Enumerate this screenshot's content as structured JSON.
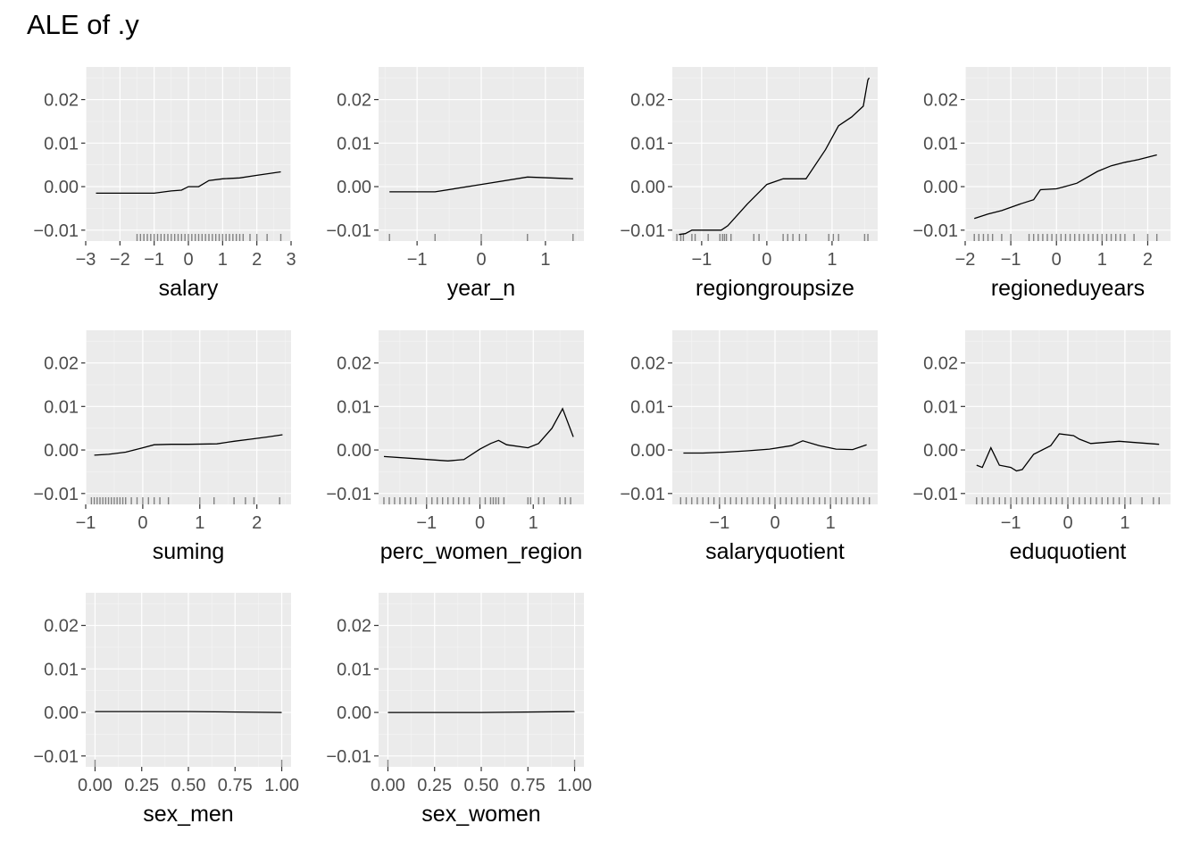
{
  "title": "ALE of .y",
  "colors": {
    "panel": "#ebebeb",
    "grid_major": "#ffffff",
    "grid_minor": "#f5f5f5",
    "line": "#000000",
    "rug": "#000000",
    "tick_text": "#4d4d4d"
  },
  "chart_data": [
    {
      "type": "line",
      "xlabel": "salary",
      "xlim": [
        -3,
        3
      ],
      "ylim": [
        -0.0125,
        0.0275
      ],
      "xticks": [
        -3,
        -2,
        -1,
        0,
        1,
        2,
        3
      ],
      "yticks": [
        -0.01,
        0.0,
        0.01,
        0.02
      ],
      "ytick_labels": [
        "-0.01",
        "0.00",
        "0.01",
        "0.02"
      ],
      "x": [
        -2.7,
        -1.0,
        -0.5,
        -0.2,
        0.0,
        0.3,
        0.6,
        1.0,
        1.5,
        2.0,
        2.7
      ],
      "y": [
        -0.0015,
        -0.0015,
        -0.001,
        -0.0008,
        0.0,
        0.0,
        0.0014,
        0.0018,
        0.002,
        0.0026,
        0.0034
      ],
      "rug": [
        -1.5,
        -1.4,
        -1.3,
        -1.2,
        -1.1,
        -1.0,
        -0.9,
        -0.8,
        -0.7,
        -0.6,
        -0.5,
        -0.4,
        -0.3,
        -0.2,
        -0.1,
        0.0,
        0.1,
        0.2,
        0.3,
        0.4,
        0.5,
        0.6,
        0.7,
        0.8,
        0.9,
        1.0,
        1.1,
        1.2,
        1.3,
        1.4,
        1.5,
        1.6,
        1.8,
        2.0,
        2.3,
        2.7
      ]
    },
    {
      "type": "line",
      "xlabel": "year_n",
      "xlim": [
        -1.6,
        1.6
      ],
      "ylim": [
        -0.0125,
        0.0275
      ],
      "xticks": [
        -1,
        0,
        1
      ],
      "yticks": [
        -0.01,
        0.0,
        0.01,
        0.02
      ],
      "ytick_labels": [
        "-0.01",
        "0.00",
        "0.01",
        "0.02"
      ],
      "x": [
        -1.43,
        -0.72,
        0.0,
        0.72,
        1.43
      ],
      "y": [
        -0.0012,
        -0.0012,
        0.0005,
        0.0022,
        0.0018
      ],
      "rug": [
        -1.43,
        -0.72,
        0.0,
        0.72,
        1.43
      ]
    },
    {
      "type": "line",
      "xlabel": "regiongroupsize",
      "xlim": [
        -1.45,
        1.7
      ],
      "ylim": [
        -0.0125,
        0.0275
      ],
      "xticks": [
        -1,
        0,
        1
      ],
      "yticks": [
        -0.01,
        0.0,
        0.01,
        0.02
      ],
      "ytick_labels": [
        "-0.01",
        "0.00",
        "0.01",
        "0.02"
      ],
      "x": [
        -1.35,
        -1.25,
        -1.15,
        -0.7,
        -0.6,
        -0.3,
        0.0,
        0.25,
        0.6,
        0.9,
        1.1,
        1.3,
        1.48,
        1.55,
        1.57
      ],
      "y": [
        -0.011,
        -0.0108,
        -0.01,
        -0.01,
        -0.009,
        -0.004,
        0.0005,
        0.0018,
        0.0018,
        0.0085,
        0.014,
        0.016,
        0.0185,
        0.0245,
        0.025
      ],
      "rug": [
        -1.38,
        -1.32,
        -1.28,
        -1.15,
        -1.1,
        -0.9,
        -0.72,
        -0.68,
        -0.65,
        -0.62,
        -0.55,
        -0.2,
        -0.12,
        0.25,
        0.32,
        0.4,
        0.5,
        0.6,
        0.95,
        1.02,
        1.1,
        1.5,
        1.55
      ]
    },
    {
      "type": "line",
      "xlabel": "regioneduyears",
      "xlim": [
        -2,
        2.5
      ],
      "ylim": [
        -0.0125,
        0.0275
      ],
      "xticks": [
        -2,
        -1,
        0,
        1,
        2
      ],
      "yticks": [
        -0.01,
        0.0,
        0.01,
        0.02
      ],
      "ytick_labels": [
        "-0.01",
        "0.00",
        "0.01",
        "0.02"
      ],
      "x": [
        -1.8,
        -1.5,
        -1.2,
        -0.8,
        -0.5,
        -0.35,
        0.0,
        0.15,
        0.45,
        0.9,
        1.2,
        1.5,
        1.8,
        2.2
      ],
      "y": [
        -0.0073,
        -0.0063,
        -0.0055,
        -0.004,
        -0.003,
        -0.0007,
        -0.0005,
        -0.0001,
        0.0008,
        0.0035,
        0.0048,
        0.0056,
        0.0062,
        0.0073
      ],
      "rug": [
        -1.8,
        -1.7,
        -1.6,
        -1.5,
        -1.4,
        -1.2,
        -1.0,
        -0.6,
        -0.5,
        -0.4,
        -0.3,
        -0.2,
        -0.1,
        0.0,
        0.1,
        0.2,
        0.3,
        0.4,
        0.5,
        0.6,
        0.7,
        0.8,
        0.9,
        1.0,
        1.1,
        1.2,
        1.3,
        1.4,
        1.5,
        1.7,
        2.0,
        2.2
      ]
    },
    {
      "type": "line",
      "xlabel": "suming",
      "xlim": [
        -1,
        2.6
      ],
      "ylim": [
        -0.0125,
        0.0275
      ],
      "xticks": [
        -1,
        0,
        1,
        2
      ],
      "yticks": [
        -0.01,
        0.0,
        0.01,
        0.02
      ],
      "ytick_labels": [
        "-0.01",
        "0.00",
        "0.01",
        "0.02"
      ],
      "x": [
        -0.85,
        -0.6,
        -0.3,
        0.0,
        0.2,
        0.5,
        0.8,
        1.3,
        1.6,
        1.9,
        2.2,
        2.45
      ],
      "y": [
        -0.0012,
        -0.001,
        -0.0005,
        0.0005,
        0.0012,
        0.0013,
        0.0013,
        0.0014,
        0.002,
        0.0025,
        0.003,
        0.0035
      ],
      "rug": [
        -0.9,
        -0.85,
        -0.8,
        -0.75,
        -0.7,
        -0.65,
        -0.6,
        -0.55,
        -0.5,
        -0.45,
        -0.4,
        -0.35,
        -0.3,
        -0.2,
        -0.1,
        0.0,
        0.1,
        0.2,
        0.3,
        0.45,
        1.0,
        1.25,
        1.6,
        1.8,
        1.95,
        2.4
      ]
    },
    {
      "type": "line",
      "xlabel": "perc_women_region",
      "xlim": [
        -1.9,
        1.95
      ],
      "ylim": [
        -0.0125,
        0.0275
      ],
      "xticks": [
        -1,
        0,
        1
      ],
      "yticks": [
        -0.01,
        0.0,
        0.01,
        0.02
      ],
      "ytick_labels": [
        "-0.01",
        "0.00",
        "0.01",
        "0.02"
      ],
      "x": [
        -1.8,
        -1.2,
        -0.6,
        -0.3,
        0.0,
        0.2,
        0.35,
        0.5,
        0.9,
        1.1,
        1.35,
        1.55,
        1.75
      ],
      "y": [
        -0.0015,
        -0.002,
        -0.0025,
        -0.0022,
        0.0002,
        0.0015,
        0.0022,
        0.0012,
        0.0005,
        0.0015,
        0.005,
        0.0095,
        0.003
      ],
      "rug": [
        -1.8,
        -1.7,
        -1.6,
        -1.5,
        -1.4,
        -1.3,
        -1.2,
        -1.0,
        -0.9,
        -0.8,
        -0.7,
        -0.6,
        -0.5,
        -0.4,
        -0.3,
        -0.2,
        0.0,
        0.1,
        0.2,
        0.25,
        0.3,
        0.35,
        0.45,
        0.9,
        0.95,
        1.1,
        1.2,
        1.5,
        1.6,
        1.7
      ]
    },
    {
      "type": "line",
      "xlabel": "salaryquotient",
      "xlim": [
        -1.85,
        1.85
      ],
      "ylim": [
        -0.0125,
        0.0275
      ],
      "xticks": [
        -1,
        0,
        1
      ],
      "yticks": [
        -0.01,
        0.0,
        0.01,
        0.02
      ],
      "ytick_labels": [
        "-0.01",
        "0.00",
        "0.01",
        "0.02"
      ],
      "x": [
        -1.65,
        -1.3,
        -0.9,
        -0.5,
        -0.1,
        0.3,
        0.5,
        0.8,
        1.1,
        1.4,
        1.65
      ],
      "y": [
        -0.0007,
        -0.0007,
        -0.0005,
        -0.0002,
        0.0002,
        0.001,
        0.0021,
        0.001,
        0.0002,
        0.0001,
        0.0012
      ],
      "rug": [
        -1.7,
        -1.6,
        -1.5,
        -1.4,
        -1.3,
        -1.2,
        -1.1,
        -1.0,
        -0.9,
        -0.8,
        -0.7,
        -0.6,
        -0.5,
        -0.4,
        -0.3,
        -0.2,
        -0.1,
        0.0,
        0.1,
        0.2,
        0.3,
        0.4,
        0.5,
        0.6,
        0.7,
        0.8,
        0.9,
        1.0,
        1.1,
        1.2,
        1.3,
        1.4,
        1.5,
        1.6,
        1.7
      ]
    },
    {
      "type": "line",
      "xlabel": "eduquotient",
      "xlim": [
        -1.8,
        1.8
      ],
      "ylim": [
        -0.0125,
        0.0275
      ],
      "xticks": [
        -1,
        0,
        1
      ],
      "yticks": [
        -0.01,
        0.0,
        0.01,
        0.02
      ],
      "ytick_labels": [
        "-0.01",
        "0.00",
        "0.01",
        "0.02"
      ],
      "x": [
        -1.6,
        -1.5,
        -1.35,
        -1.2,
        -1.0,
        -0.9,
        -0.8,
        -0.6,
        -0.3,
        -0.15,
        0.1,
        0.2,
        0.4,
        0.7,
        0.9,
        1.2,
        1.6
      ],
      "y": [
        -0.0035,
        -0.004,
        0.0005,
        -0.0035,
        -0.004,
        -0.0048,
        -0.0045,
        -0.001,
        0.001,
        0.0037,
        0.0033,
        0.0025,
        0.0015,
        0.0018,
        0.002,
        0.0017,
        0.0013
      ],
      "rug": [
        -1.6,
        -1.5,
        -1.4,
        -1.3,
        -1.2,
        -1.1,
        -1.0,
        -0.9,
        -0.8,
        -0.7,
        -0.6,
        -0.5,
        -0.4,
        -0.3,
        -0.2,
        -0.1,
        0.0,
        0.1,
        0.2,
        0.3,
        0.4,
        0.5,
        0.6,
        0.7,
        0.8,
        0.9,
        1.0,
        1.1,
        1.3,
        1.5,
        1.6
      ]
    },
    {
      "type": "line",
      "xlabel": "sex_men",
      "xlim": [
        -0.05,
        1.05
      ],
      "ylim": [
        -0.0125,
        0.0275
      ],
      "xticks": [
        0.0,
        0.25,
        0.5,
        0.75,
        1.0
      ],
      "xtick_labels": [
        "0.00",
        "0.25",
        "0.50",
        "0.75",
        "1.00"
      ],
      "yticks": [
        -0.01,
        0.0,
        0.01,
        0.02
      ],
      "ytick_labels": [
        "-0.01",
        "0.00",
        "0.01",
        "0.02"
      ],
      "x": [
        0.0,
        0.5,
        1.0
      ],
      "y": [
        0.0002,
        0.0002,
        0.0
      ],
      "rug": [
        0.0,
        1.0
      ]
    },
    {
      "type": "line",
      "xlabel": "sex_women",
      "xlim": [
        -0.05,
        1.05
      ],
      "ylim": [
        -0.0125,
        0.0275
      ],
      "xticks": [
        0.0,
        0.25,
        0.5,
        0.75,
        1.0
      ],
      "xtick_labels": [
        "0.00",
        "0.25",
        "0.50",
        "0.75",
        "1.00"
      ],
      "yticks": [
        -0.01,
        0.0,
        0.01,
        0.02
      ],
      "ytick_labels": [
        "-0.01",
        "0.00",
        "0.01",
        "0.02"
      ],
      "x": [
        0.0,
        0.5,
        1.0
      ],
      "y": [
        0.0,
        0.0,
        0.0002
      ],
      "rug": [
        0.0,
        1.0
      ]
    }
  ]
}
